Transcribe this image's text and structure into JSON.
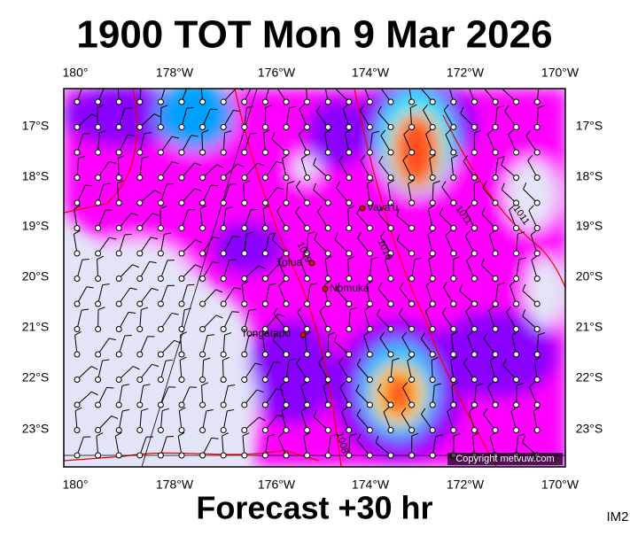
{
  "header": {
    "title": "1900 TOT Mon 9 Mar 2026"
  },
  "axes": {
    "longitudes": [
      "180°",
      "178°W",
      "176°W",
      "174°W",
      "172°W",
      "170°W"
    ],
    "latitudes": [
      "17°S",
      "18°S",
      "19°S",
      "20°S",
      "21°S",
      "22°S",
      "23°S"
    ]
  },
  "places": [
    {
      "label": "Vava'u"
    },
    {
      "label": "Tofua"
    },
    {
      "label": "Nomuka"
    },
    {
      "label": "Tongatapu"
    }
  ],
  "contours": [
    "1011",
    "1011",
    "1010",
    "1009",
    "1008"
  ],
  "copyright": "Copyright metvuw.com",
  "footer": {
    "forecast": "Forecast +30 hr",
    "id": "IM2"
  }
}
